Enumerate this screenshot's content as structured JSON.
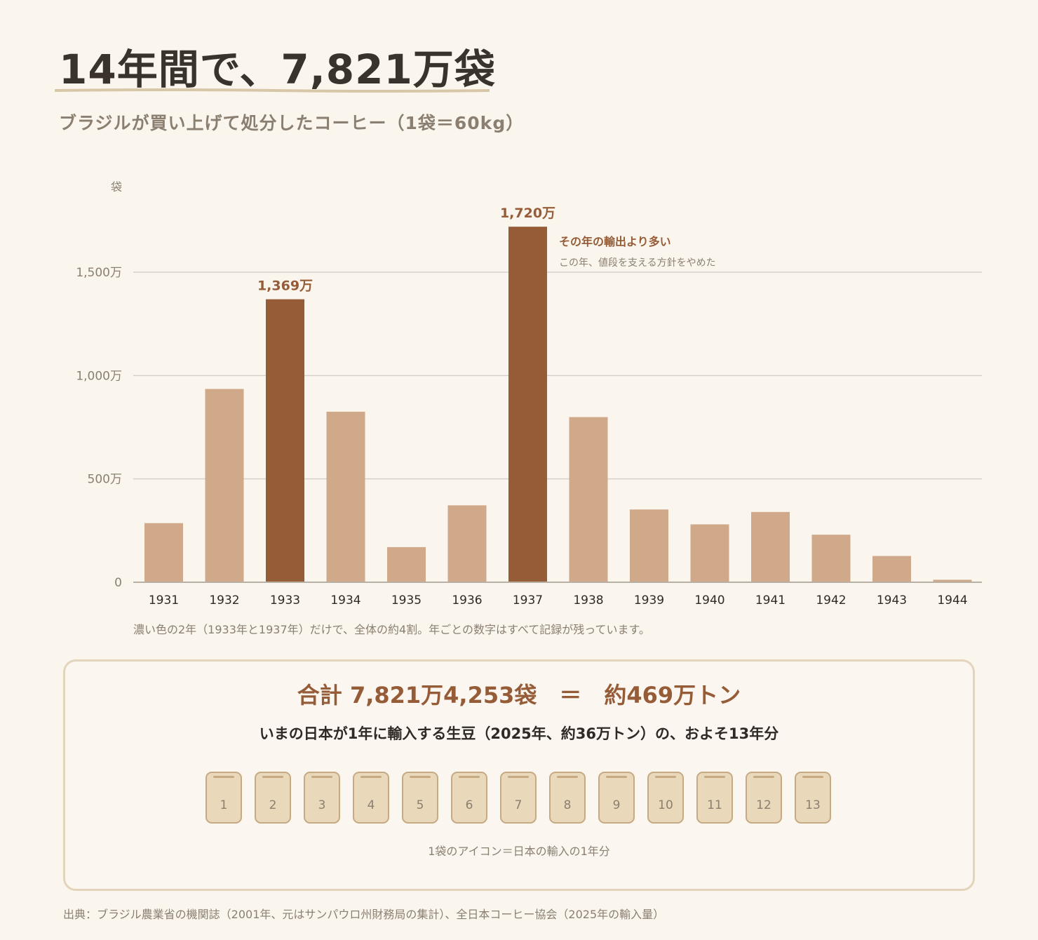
{
  "title": "14年間で、7,821万袋",
  "subtitle": "ブラジルが買い上げて処分したコーヒー（1袋＝60kg）",
  "colors": {
    "highlight": "#965c38",
    "normal": "#cfa98a",
    "grid": "#d6d1c8",
    "axis": "#b8b0a4",
    "text_muted": "#8a7f70"
  },
  "chart_data": {
    "type": "bar",
    "unit_label": "袋",
    "categories": [
      "1931",
      "1932",
      "1933",
      "1934",
      "1935",
      "1936",
      "1937",
      "1938",
      "1939",
      "1940",
      "1941",
      "1942",
      "1943",
      "1944"
    ],
    "values": [
      2860000.0,
      9350000.0,
      13690000.0,
      8250000.0,
      1700000.0,
      3720000.0,
      17200000.0,
      7990000.0,
      3520000.0,
      2800000.0,
      3400000.0,
      2300000.0,
      1270000.0,
      120000.0
    ],
    "highlight": [
      "1933",
      "1937"
    ],
    "data_labels": {
      "1933": "1,369万",
      "1937": "1,720万"
    },
    "yticks": [
      {
        "value": 0,
        "label": "0"
      },
      {
        "value": 5000000,
        "label": "500万"
      },
      {
        "value": 10000000,
        "label": "1,000万"
      },
      {
        "value": 15000000,
        "label": "1,500万"
      }
    ],
    "ylim": [
      0,
      15000000
    ],
    "grid": true,
    "annotation": {
      "title": "その年の輸出より多い",
      "text": "この年、値段を支える方針をやめた"
    }
  },
  "chart_note": "濃い色の2年（1933年と1937年）だけで、全体の約4割。年ごとの数字はすべて記録が残っています。",
  "summary": {
    "main": "合計 7,821万4,253袋　＝　約469万トン",
    "sub": "いまの日本が1年に輸入する生豆（2025年、約36万トン）の、およそ13年分",
    "bag_count": 13,
    "bag_labels": [
      "1",
      "2",
      "3",
      "4",
      "5",
      "6",
      "7",
      "8",
      "9",
      "10",
      "11",
      "12",
      "13"
    ],
    "caption": "1袋のアイコン＝日本の輸入の1年分"
  },
  "source": "出典：ブラジル農業省の機関誌（2001年、元はサンパウロ州財務局の集計）、全日本コーヒー協会（2025年の輸入量）"
}
